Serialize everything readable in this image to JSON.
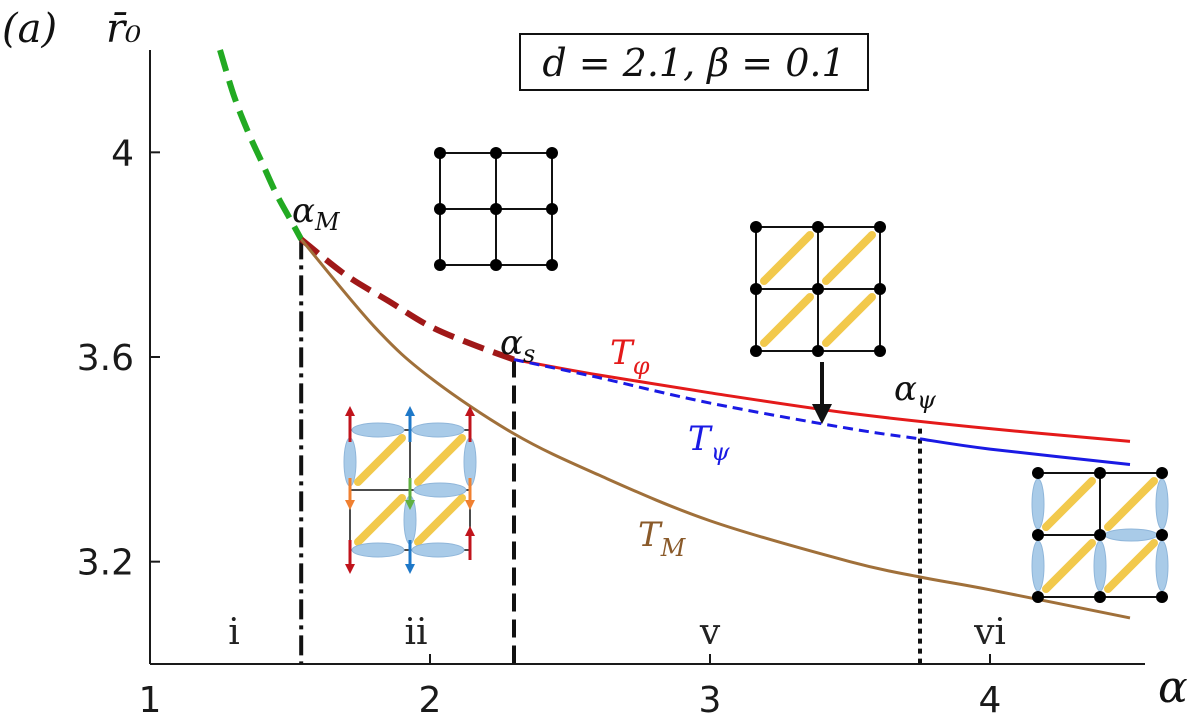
{
  "chart_data": {
    "type": "line",
    "panel_label": "(a)",
    "xlabel": "α",
    "ylabel": "r̄₀",
    "parameter_box": "d = 2.1, β = 0.1",
    "xlim": [
      1,
      4.5
    ],
    "ylim": [
      3.0,
      4.2
    ],
    "x_ticks": [
      "1",
      "2",
      "3",
      "4"
    ],
    "y_ticks": [
      "4",
      "3.6",
      "3.2"
    ],
    "x_tick_values": [
      1,
      2,
      3,
      4
    ],
    "y_tick_values": [
      4.0,
      3.6,
      3.2
    ],
    "series": [
      {
        "name": "green-dashed",
        "color": "#22aa22",
        "style": "dashed",
        "x": [
          1.25,
          1.3,
          1.35,
          1.4,
          1.45,
          1.5,
          1.54
        ],
        "y": [
          4.2,
          4.11,
          4.04,
          3.98,
          3.92,
          3.87,
          3.83
        ]
      },
      {
        "name": "darkred-dashed",
        "color": "#a01818",
        "style": "dashed",
        "x": [
          1.54,
          1.7,
          1.85,
          2.0,
          2.15,
          2.3
        ],
        "y": [
          3.83,
          3.76,
          3.71,
          3.66,
          3.625,
          3.595
        ]
      },
      {
        "name": "T_φ",
        "label": "Tφ",
        "color": "#e41a1a",
        "style": "solid",
        "x": [
          2.3,
          2.6,
          3.0,
          3.5,
          4.0,
          4.5
        ],
        "y": [
          3.595,
          3.565,
          3.53,
          3.49,
          3.46,
          3.435
        ]
      },
      {
        "name": "T_ψ",
        "label": "Tψ",
        "color": "#1a1ae4",
        "style": "dashed-then-solid",
        "solid_from": 3.75,
        "x": [
          2.3,
          2.6,
          3.0,
          3.5,
          3.75,
          4.0,
          4.5
        ],
        "y": [
          3.595,
          3.56,
          3.51,
          3.46,
          3.44,
          3.42,
          3.39
        ]
      },
      {
        "name": "T_M",
        "label": "TM",
        "color": "#a0703a",
        "style": "solid",
        "x": [
          1.54,
          1.8,
          2.0,
          2.3,
          2.6,
          3.0,
          3.5,
          3.75,
          4.0,
          4.5
        ],
        "y": [
          3.83,
          3.66,
          3.56,
          3.45,
          3.37,
          3.28,
          3.2,
          3.17,
          3.145,
          3.09
        ]
      }
    ],
    "vertical_markers": [
      {
        "label": "αM",
        "x": 1.54,
        "style": "dash-dot",
        "top": 3.83
      },
      {
        "label": "αs",
        "x": 2.3,
        "style": "dashed",
        "top": 3.595
      },
      {
        "label": "αψ",
        "x": 3.75,
        "style": "dotted",
        "top": 3.46
      }
    ],
    "regions": [
      {
        "label": "i",
        "x": 1.3
      },
      {
        "label": "ii",
        "x": 1.95
      },
      {
        "label": "v",
        "x": 3.0
      },
      {
        "label": "vi",
        "x": 4.0
      }
    ]
  },
  "annotations": {
    "alpha_M": "α",
    "alpha_M_sub": "M",
    "alpha_s": "α",
    "alpha_s_sub": "s",
    "alpha_psi": "α",
    "alpha_psi_sub": "ψ",
    "T_phi": "T",
    "T_phi_sub": "φ",
    "T_psi": "T",
    "T_psi_sub": "ψ",
    "T_M": "T",
    "T_M_sub": "M"
  },
  "colors": {
    "axis": "#1a1a1a",
    "green": "#22aa22",
    "darkred": "#a01818",
    "red": "#e41a1a",
    "blue": "#1a1ae4",
    "brown": "#a0703a",
    "bond": "#f2c94c",
    "ellipse": "#a9cbe8"
  }
}
